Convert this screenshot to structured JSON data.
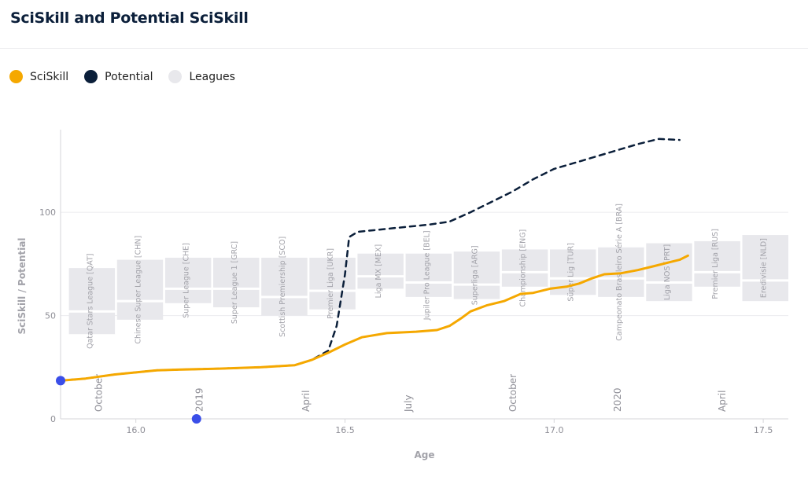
{
  "header": {
    "title": "SciSkill and Potential SciSkill"
  },
  "legend": [
    {
      "label": "SciSkill",
      "color": "#f5a800"
    },
    {
      "label": "Potential",
      "color": "#0b1f3a"
    },
    {
      "label": "Leagues",
      "color": "#e8e8ec"
    }
  ],
  "chart_data": {
    "type": "line",
    "xlabel": "Age",
    "ylabel": "SciSkill / Potential",
    "xlim": [
      15.82,
      17.56
    ],
    "ylim": [
      0,
      140
    ],
    "x_ticks": [
      16.0,
      16.5,
      17.0,
      17.5
    ],
    "x_tick_labels": [
      "16.0",
      "16.5",
      "17.0",
      "17.5"
    ],
    "y_ticks": [
      0,
      50,
      100
    ],
    "y_tick_labels": [
      "0",
      "50",
      "100"
    ],
    "grid": true,
    "legend_position": "top-left",
    "date_markers": [
      {
        "label": "October",
        "age": 15.905
      },
      {
        "label": "2019",
        "age": 16.145
      },
      {
        "label": "April",
        "age": 16.4
      },
      {
        "label": "July",
        "age": 16.645
      },
      {
        "label": "October",
        "age": 16.895
      },
      {
        "label": "2020",
        "age": 17.145
      },
      {
        "label": "April",
        "age": 17.395
      }
    ],
    "leagues": [
      {
        "name": "Qatar Stars League [QAT]",
        "x0": 15.84,
        "x1": 15.95,
        "y0": 41,
        "y1": 73,
        "split": 52
      },
      {
        "name": "Chinese Super League [CHN]",
        "x0": 15.955,
        "x1": 16.065,
        "y0": 48,
        "y1": 77,
        "split": 57
      },
      {
        "name": "Super League [CHE]",
        "x0": 16.07,
        "x1": 16.18,
        "y0": 56,
        "y1": 78,
        "split": 63
      },
      {
        "name": "Super League 1 [GRC]",
        "x0": 16.185,
        "x1": 16.295,
        "y0": 54,
        "y1": 78,
        "split": 63
      },
      {
        "name": "Scottish Premiership [SCO]",
        "x0": 16.3,
        "x1": 16.41,
        "y0": 50,
        "y1": 78,
        "split": 59
      },
      {
        "name": "Premier Liga [UKR]",
        "x0": 16.415,
        "x1": 16.525,
        "y0": 53,
        "y1": 78,
        "split": 62
      },
      {
        "name": "Liga MX [MEX]",
        "x0": 16.53,
        "x1": 16.64,
        "y0": 63,
        "y1": 80,
        "split": 69
      },
      {
        "name": "Jupiler Pro League [BEL]",
        "x0": 16.645,
        "x1": 16.755,
        "y0": 59,
        "y1": 80,
        "split": 66
      },
      {
        "name": "Superliga [ARG]",
        "x0": 16.76,
        "x1": 16.87,
        "y0": 58,
        "y1": 81,
        "split": 65
      },
      {
        "name": "Championship [ENG]",
        "x0": 16.875,
        "x1": 16.985,
        "y0": 64,
        "y1": 82,
        "split": 71
      },
      {
        "name": "Süper Lig [TUR]",
        "x0": 16.99,
        "x1": 17.1,
        "y0": 60,
        "y1": 82,
        "split": 68
      },
      {
        "name": "Campeonato Brasileiro Série A [BRA]",
        "x0": 17.105,
        "x1": 17.215,
        "y0": 59,
        "y1": 83,
        "split": 68
      },
      {
        "name": "Liga NOS [PRT]",
        "x0": 17.22,
        "x1": 17.33,
        "y0": 57,
        "y1": 85,
        "split": 66
      },
      {
        "name": "Premier Liga [RUS]",
        "x0": 17.335,
        "x1": 17.445,
        "y0": 64,
        "y1": 86,
        "split": 71
      },
      {
        "name": "Eredivisie [NLD]",
        "x0": 17.45,
        "x1": 17.56,
        "y0": 57,
        "y1": 89,
        "split": 67
      }
    ],
    "series": [
      {
        "name": "SciSkill",
        "color": "#f5a800",
        "x": [
          15.82,
          15.88,
          15.95,
          16.0,
          16.05,
          16.1,
          16.2,
          16.3,
          16.38,
          16.42,
          16.46,
          16.5,
          16.54,
          16.6,
          16.67,
          16.72,
          16.75,
          16.78,
          16.8,
          16.84,
          16.88,
          16.92,
          16.95,
          16.99,
          17.03,
          17.06,
          17.09,
          17.12,
          17.16,
          17.2,
          17.24,
          17.28,
          17.3,
          17.32
        ],
        "y": [
          18.5,
          19.5,
          21.5,
          22.5,
          23.5,
          23.8,
          24.3,
          25,
          26,
          28.5,
          32,
          36,
          39.5,
          41.5,
          42.2,
          43,
          45,
          49,
          52,
          55,
          57,
          60.5,
          61,
          63,
          64,
          65.5,
          68,
          70,
          70.5,
          72,
          74,
          76,
          77,
          79
        ]
      },
      {
        "name": "Potential",
        "color": "#0b1f3a",
        "dashed": true,
        "x": [
          15.82,
          15.88,
          15.95,
          16.0,
          16.05,
          16.1,
          16.2,
          16.3,
          16.38,
          16.42,
          16.46,
          16.48,
          16.5,
          16.51,
          16.53,
          16.6,
          16.7,
          16.75,
          16.8,
          16.85,
          16.9,
          16.95,
          17.0,
          17.05,
          17.1,
          17.15,
          17.2,
          17.25,
          17.3
        ],
        "y": [
          18.5,
          19.5,
          21.5,
          22.5,
          23.5,
          23.8,
          24.3,
          25,
          26,
          28.5,
          33,
          45,
          70,
          88,
          90.5,
          92,
          94,
          95.5,
          100,
          105,
          110,
          116,
          121,
          124,
          127,
          130,
          133,
          135.5,
          135
        ]
      }
    ],
    "markers": [
      {
        "x": 15.82,
        "y": 18.5,
        "color": "#3a4ee8"
      },
      {
        "x": 16.145,
        "y": 0,
        "color": "#3a4ee8"
      }
    ]
  }
}
